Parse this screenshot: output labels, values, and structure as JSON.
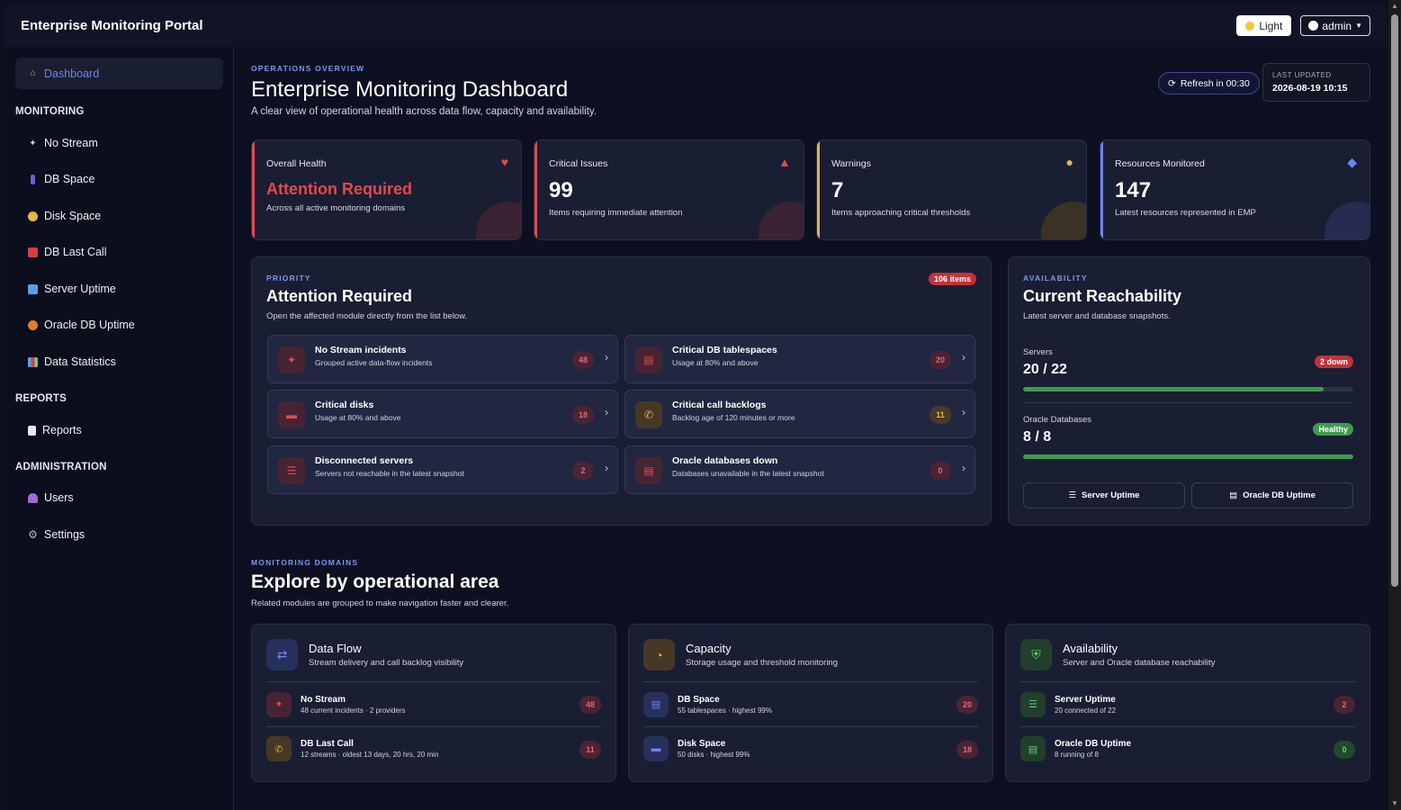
{
  "header": {
    "title": "Enterprise Monitoring Portal",
    "theme_label": "Light",
    "user_label": "admin"
  },
  "sidebar": {
    "active": "Dashboard",
    "sections": {
      "monitoring": "MONITORING",
      "reports": "REPORTS",
      "administration": "ADMINISTRATION"
    },
    "items": {
      "no_stream": "No Stream",
      "db_space": "DB Space",
      "disk_space": "Disk Space",
      "db_last_call": "DB Last Call",
      "server_uptime": "Server Uptime",
      "oracle_db_uptime": "Oracle DB Uptime",
      "data_statistics": "Data Statistics",
      "reports": "Reports",
      "users": "Users",
      "settings": "Settings"
    }
  },
  "overview": {
    "eyebrow": "OPERATIONS OVERVIEW",
    "title": "Enterprise Monitoring Dashboard",
    "subtitle": "A clear view of operational health across data flow, capacity and availability.",
    "refresh": "Refresh in 00:30",
    "last_updated_label": "LAST UPDATED",
    "last_updated": "2026-08-19 10:15"
  },
  "stats": [
    {
      "label": "Overall Health",
      "value": "Attention Required",
      "desc": "Across all active monitoring domains",
      "color": "#e2494d",
      "icon": "heart-pulse-icon"
    },
    {
      "label": "Critical Issues",
      "value": "99",
      "desc": "Items requiring immediate attention",
      "color": "#e2494d",
      "icon": "warning-triangle-icon"
    },
    {
      "label": "Warnings",
      "value": "7",
      "desc": "Items approaching critical thresholds",
      "color": "#e9b44a",
      "icon": "exclamation-circle-icon"
    },
    {
      "label": "Resources Monitored",
      "value": "147",
      "desc": "Latest resources represented in EMP",
      "color": "#6f84f0",
      "icon": "layers-icon"
    }
  ],
  "attention": {
    "eyebrow": "PRIORITY",
    "title": "Attention Required",
    "subtitle": "Open the affected module directly from the list below.",
    "badge": "106 items",
    "items": [
      {
        "title": "No Stream incidents",
        "desc": "Grouped active data-flow incidents",
        "count": "48"
      },
      {
        "title": "Critical DB tablespaces",
        "desc": "Usage at 80% and above",
        "count": "20"
      },
      {
        "title": "Critical disks",
        "desc": "Usage at 80% and above",
        "count": "18"
      },
      {
        "title": "Critical call backlogs",
        "desc": "Backlog age of 120 minutes or more",
        "count": "11"
      },
      {
        "title": "Disconnected servers",
        "desc": "Servers not reachable in the latest snapshot",
        "count": "2"
      },
      {
        "title": "Oracle databases down",
        "desc": "Databases unavailable in the latest snapshot",
        "count": "0"
      }
    ]
  },
  "reachability": {
    "eyebrow": "AVAILABILITY",
    "title": "Current Reachability",
    "subtitle": "Latest server and database snapshots.",
    "servers": {
      "label": "Servers",
      "value": "20 / 22",
      "badge": "2 down",
      "fraction": 0.909
    },
    "oracle": {
      "label": "Oracle Databases",
      "value": "8 / 8",
      "badge": "Healthy",
      "fraction": 1.0
    },
    "btn_server": "Server Uptime",
    "btn_oracle": "Oracle DB Uptime"
  },
  "domains": {
    "eyebrow": "MONITORING DOMAINS",
    "title": "Explore by operational area",
    "subtitle": "Related modules are grouped to make navigation faster and clearer.",
    "cards": [
      {
        "title": "Data Flow",
        "desc": "Stream delivery and call backlog visibility",
        "rows": [
          {
            "title": "No Stream",
            "desc": "48 current incidents · 2 providers",
            "count": "48"
          },
          {
            "title": "DB Last Call",
            "desc": "12 streams · oldest 13 days, 20 hrs, 20 min",
            "count": "11"
          }
        ]
      },
      {
        "title": "Capacity",
        "desc": "Storage usage and threshold monitoring",
        "rows": [
          {
            "title": "DB Space",
            "desc": "55 tablespaces · highest 99%",
            "count": "20"
          },
          {
            "title": "Disk Space",
            "desc": "50 disks · highest 99%",
            "count": "18"
          }
        ]
      },
      {
        "title": "Availability",
        "desc": "Server and Oracle database reachability",
        "rows": [
          {
            "title": "Server Uptime",
            "desc": "20 connected of 22",
            "count": "2"
          },
          {
            "title": "Oracle DB Uptime",
            "desc": "8 running of 8",
            "count": "0"
          }
        ]
      }
    ]
  }
}
